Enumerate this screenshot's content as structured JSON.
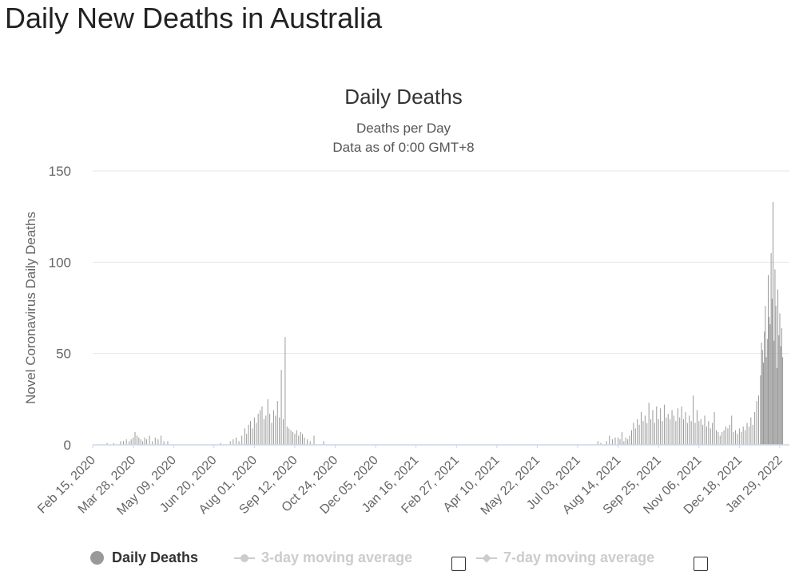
{
  "page_title": "Daily New Deaths in Australia",
  "legend": {
    "daily_deaths": "Daily Deaths",
    "ma3": "3-day moving average",
    "ma7": "7-day moving average"
  },
  "colors": {
    "bar": "#999999",
    "grid": "#e6e6e6",
    "axis": "#ccd6eb",
    "legend_inactive": "#cccccc"
  },
  "chart_data": {
    "type": "bar",
    "title": "Daily Deaths",
    "subtitle": [
      "Deaths per Day",
      "Data as of 0:00 GMT+8"
    ],
    "ylabel": "Novel Coronavirus Daily Deaths",
    "xlabel": "",
    "ylim": [
      0,
      150
    ],
    "yticks": [
      0,
      50,
      100,
      150
    ],
    "grid": true,
    "legend_position": "bottom",
    "x_range": [
      "2020-02-15",
      "2022-02-08"
    ],
    "xtick_labels": [
      "Feb 15, 2020",
      "Mar 28, 2020",
      "May 09, 2020",
      "Jun 20, 2020",
      "Aug 01, 2020",
      "Sep 12, 2020",
      "Oct 24, 2020",
      "Dec 05, 2020",
      "Jan 16, 2021",
      "Feb 27, 2021",
      "Apr 10, 2021",
      "May 22, 2021",
      "Jul 03, 2021",
      "Aug 14, 2021",
      "Sep 25, 2021",
      "Nov 06, 2021",
      "Dec 18, 2021",
      "Jan 29, 2022"
    ],
    "series": [
      {
        "name": "Daily Deaths",
        "points": [
          [
            "2020-03-01",
            1
          ],
          [
            "2020-03-08",
            1
          ],
          [
            "2020-03-15",
            2
          ],
          [
            "2020-03-18",
            2
          ],
          [
            "2020-03-21",
            3
          ],
          [
            "2020-03-24",
            2
          ],
          [
            "2020-03-26",
            3
          ],
          [
            "2020-03-28",
            4
          ],
          [
            "2020-03-30",
            7
          ],
          [
            "2020-04-01",
            5
          ],
          [
            "2020-04-03",
            4
          ],
          [
            "2020-04-05",
            3
          ],
          [
            "2020-04-07",
            2
          ],
          [
            "2020-04-09",
            4
          ],
          [
            "2020-04-11",
            3
          ],
          [
            "2020-04-14",
            5
          ],
          [
            "2020-04-17",
            2
          ],
          [
            "2020-04-20",
            4
          ],
          [
            "2020-04-23",
            3
          ],
          [
            "2020-04-26",
            5
          ],
          [
            "2020-04-29",
            2
          ],
          [
            "2020-05-03",
            2
          ],
          [
            "2020-06-27",
            1
          ],
          [
            "2020-07-07",
            2
          ],
          [
            "2020-07-10",
            3
          ],
          [
            "2020-07-13",
            4
          ],
          [
            "2020-07-16",
            2
          ],
          [
            "2020-07-19",
            5
          ],
          [
            "2020-07-22",
            9
          ],
          [
            "2020-07-24",
            6
          ],
          [
            "2020-07-26",
            11
          ],
          [
            "2020-07-28",
            13
          ],
          [
            "2020-07-30",
            9
          ],
          [
            "2020-08-01",
            15
          ],
          [
            "2020-08-03",
            12
          ],
          [
            "2020-08-05",
            17
          ],
          [
            "2020-08-07",
            19
          ],
          [
            "2020-08-09",
            21
          ],
          [
            "2020-08-11",
            14
          ],
          [
            "2020-08-13",
            16
          ],
          [
            "2020-08-15",
            25
          ],
          [
            "2020-08-17",
            17
          ],
          [
            "2020-08-19",
            12
          ],
          [
            "2020-08-21",
            19
          ],
          [
            "2020-08-23",
            16
          ],
          [
            "2020-08-25",
            24
          ],
          [
            "2020-08-27",
            15
          ],
          [
            "2020-08-29",
            41
          ],
          [
            "2020-08-31",
            14
          ],
          [
            "2020-09-02",
            59
          ],
          [
            "2020-09-04",
            10
          ],
          [
            "2020-09-06",
            9
          ],
          [
            "2020-09-08",
            8
          ],
          [
            "2020-09-10",
            7
          ],
          [
            "2020-09-12",
            6
          ],
          [
            "2020-09-14",
            8
          ],
          [
            "2020-09-16",
            5
          ],
          [
            "2020-09-18",
            7
          ],
          [
            "2020-09-20",
            6
          ],
          [
            "2020-09-22",
            4
          ],
          [
            "2020-09-25",
            3
          ],
          [
            "2020-09-28",
            2
          ],
          [
            "2020-10-02",
            5
          ],
          [
            "2020-10-12",
            2
          ],
          [
            "2021-07-24",
            2
          ],
          [
            "2021-07-27",
            1
          ],
          [
            "2021-08-02",
            2
          ],
          [
            "2021-08-05",
            5
          ],
          [
            "2021-08-08",
            3
          ],
          [
            "2021-08-11",
            4
          ],
          [
            "2021-08-14",
            4
          ],
          [
            "2021-08-16",
            3
          ],
          [
            "2021-08-18",
            7
          ],
          [
            "2021-08-20",
            2
          ],
          [
            "2021-08-22",
            4
          ],
          [
            "2021-08-24",
            3
          ],
          [
            "2021-08-26",
            5
          ],
          [
            "2021-08-28",
            8
          ],
          [
            "2021-08-30",
            12
          ],
          [
            "2021-09-01",
            9
          ],
          [
            "2021-09-03",
            14
          ],
          [
            "2021-09-05",
            11
          ],
          [
            "2021-09-07",
            18
          ],
          [
            "2021-09-09",
            13
          ],
          [
            "2021-09-11",
            16
          ],
          [
            "2021-09-13",
            12
          ],
          [
            "2021-09-15",
            23
          ],
          [
            "2021-09-17",
            14
          ],
          [
            "2021-09-19",
            19
          ],
          [
            "2021-09-21",
            12
          ],
          [
            "2021-09-23",
            21
          ],
          [
            "2021-09-25",
            14
          ],
          [
            "2021-09-27",
            20
          ],
          [
            "2021-09-29",
            13
          ],
          [
            "2021-10-01",
            22
          ],
          [
            "2021-10-03",
            15
          ],
          [
            "2021-10-05",
            17
          ],
          [
            "2021-10-07",
            14
          ],
          [
            "2021-10-09",
            19
          ],
          [
            "2021-10-11",
            16
          ],
          [
            "2021-10-13",
            13
          ],
          [
            "2021-10-15",
            20
          ],
          [
            "2021-10-17",
            15
          ],
          [
            "2021-10-19",
            21
          ],
          [
            "2021-10-21",
            14
          ],
          [
            "2021-10-23",
            18
          ],
          [
            "2021-10-25",
            12
          ],
          [
            "2021-10-27",
            16
          ],
          [
            "2021-10-29",
            13
          ],
          [
            "2021-10-31",
            27
          ],
          [
            "2021-11-02",
            12
          ],
          [
            "2021-11-04",
            19
          ],
          [
            "2021-11-06",
            13
          ],
          [
            "2021-11-08",
            14
          ],
          [
            "2021-11-10",
            11
          ],
          [
            "2021-11-12",
            16
          ],
          [
            "2021-11-14",
            10
          ],
          [
            "2021-11-16",
            13
          ],
          [
            "2021-11-18",
            9
          ],
          [
            "2021-11-20",
            12
          ],
          [
            "2021-11-22",
            18
          ],
          [
            "2021-11-24",
            8
          ],
          [
            "2021-11-26",
            7
          ],
          [
            "2021-11-28",
            5
          ],
          [
            "2021-11-30",
            7
          ],
          [
            "2021-12-02",
            8
          ],
          [
            "2021-12-04",
            10
          ],
          [
            "2021-12-06",
            9
          ],
          [
            "2021-12-08",
            11
          ],
          [
            "2021-12-10",
            16
          ],
          [
            "2021-12-12",
            7
          ],
          [
            "2021-12-14",
            8
          ],
          [
            "2021-12-16",
            6
          ],
          [
            "2021-12-18",
            9
          ],
          [
            "2021-12-20",
            7
          ],
          [
            "2021-12-22",
            10
          ],
          [
            "2021-12-24",
            8
          ],
          [
            "2021-12-26",
            12
          ],
          [
            "2021-12-28",
            10
          ],
          [
            "2021-12-30",
            15
          ],
          [
            "2022-01-01",
            11
          ],
          [
            "2022-01-03",
            18
          ],
          [
            "2022-01-05",
            24
          ],
          [
            "2022-01-07",
            27
          ],
          [
            "2022-01-09",
            38
          ],
          [
            "2022-01-10",
            56
          ],
          [
            "2022-01-11",
            52
          ],
          [
            "2022-01-12",
            45
          ],
          [
            "2022-01-13",
            62
          ],
          [
            "2022-01-14",
            76
          ],
          [
            "2022-01-15",
            48
          ],
          [
            "2022-01-16",
            58
          ],
          [
            "2022-01-17",
            93
          ],
          [
            "2022-01-18",
            70
          ],
          [
            "2022-01-19",
            66
          ],
          [
            "2022-01-20",
            105
          ],
          [
            "2022-01-21",
            80
          ],
          [
            "2022-01-22",
            133
          ],
          [
            "2022-01-23",
            57
          ],
          [
            "2022-01-24",
            96
          ],
          [
            "2022-01-25",
            76
          ],
          [
            "2022-01-26",
            42
          ],
          [
            "2022-01-27",
            85
          ],
          [
            "2022-01-28",
            60
          ],
          [
            "2022-01-29",
            72
          ],
          [
            "2022-01-30",
            54
          ],
          [
            "2022-01-31",
            64
          ],
          [
            "2022-02-01",
            48
          ]
        ]
      }
    ]
  }
}
